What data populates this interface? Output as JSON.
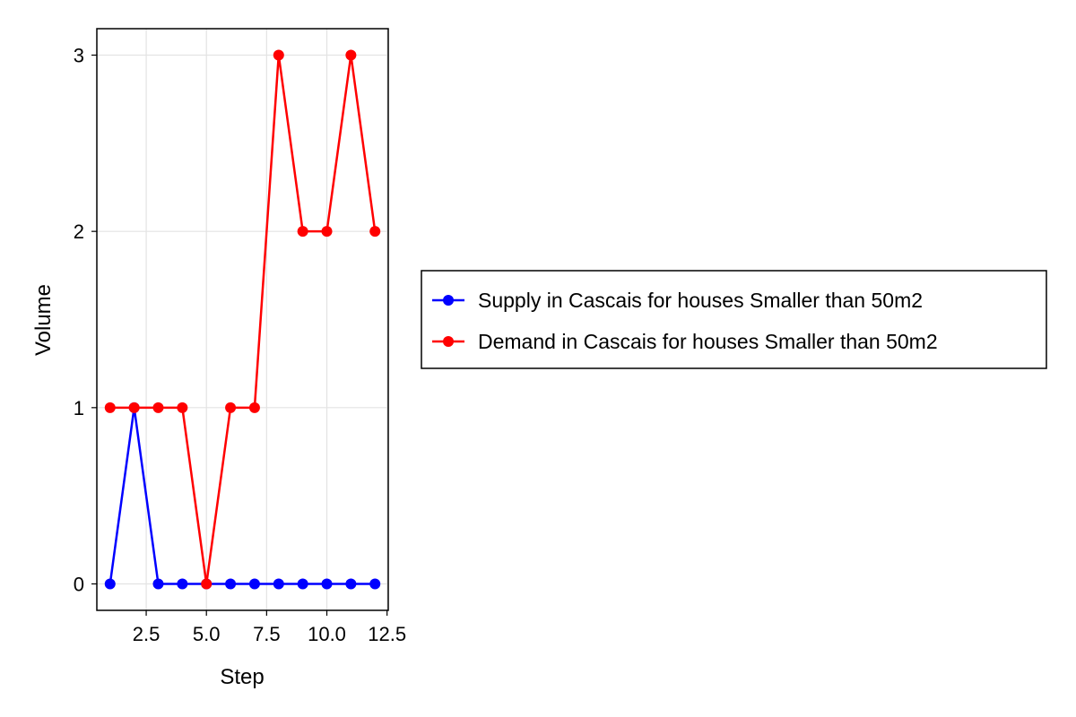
{
  "chart_data": {
    "type": "line",
    "xlabel": "Step",
    "ylabel": "Volume",
    "x": [
      1,
      2,
      3,
      4,
      5,
      6,
      7,
      8,
      9,
      10,
      11,
      12
    ],
    "xlim": [
      0.45,
      12.55
    ],
    "ylim": [
      -0.15,
      3.15
    ],
    "xticks": [
      2.5,
      5.0,
      7.5,
      10.0,
      12.5
    ],
    "xtick_labels": [
      "2.5",
      "5.0",
      "7.5",
      "10.0",
      "12.5"
    ],
    "yticks": [
      0,
      1,
      2,
      3
    ],
    "ytick_labels": [
      "0",
      "1",
      "2",
      "3"
    ],
    "grid": true,
    "legend_position": "right",
    "series": [
      {
        "name": "Supply in Cascais for houses Smaller than 50m2",
        "color": "#0000ff",
        "values": [
          0,
          1,
          0,
          0,
          0,
          0,
          0,
          0,
          0,
          0,
          0,
          0
        ]
      },
      {
        "name": "Demand in Cascais for houses Smaller than 50m2",
        "color": "#ff0000",
        "values": [
          1,
          1,
          1,
          1,
          0,
          1,
          1,
          3,
          2,
          2,
          3,
          2
        ]
      }
    ]
  }
}
